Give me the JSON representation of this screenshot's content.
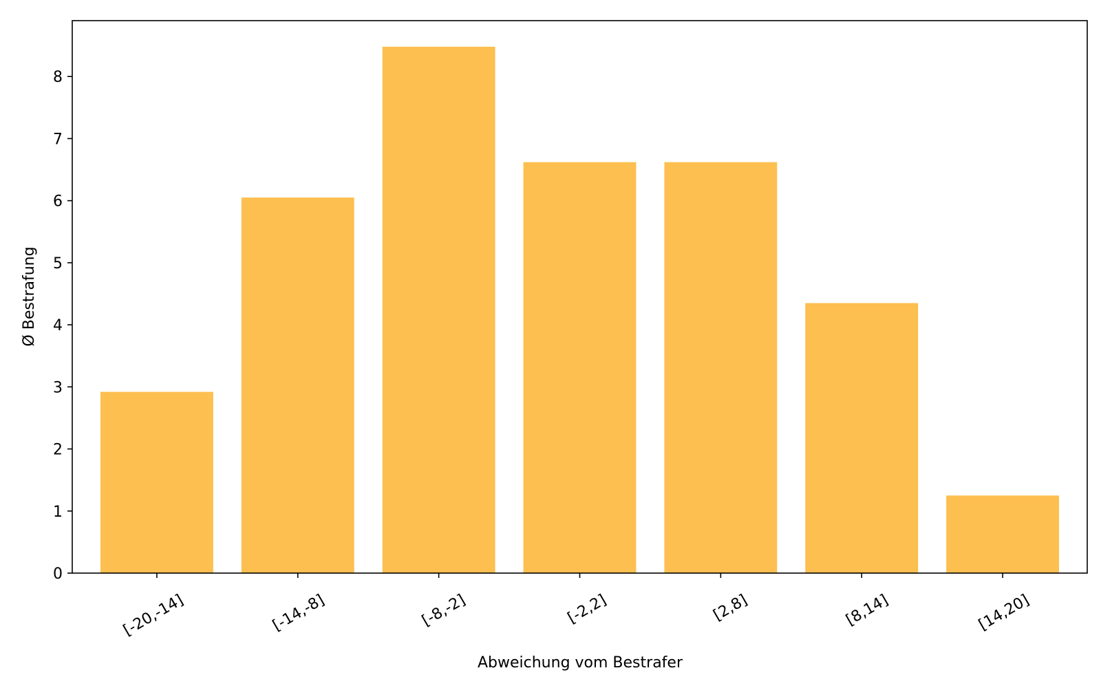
{
  "chart_data": {
    "type": "bar",
    "categories": [
      "[-20,-14]",
      "[-14,-8]",
      "[-8,-2]",
      "[-2,2]",
      "[2,8]",
      "[8,14]",
      "[14,20]"
    ],
    "values": [
      2.92,
      6.05,
      8.48,
      6.62,
      6.62,
      4.35,
      1.25
    ],
    "xlabel": "Abweichung vom Bestrafer",
    "ylabel": "Ø Bestrafung",
    "ylim": [
      0,
      8.9
    ],
    "yticks": [
      "0",
      "1",
      "2",
      "3",
      "4",
      "5",
      "6",
      "7",
      "8"
    ],
    "grid": false,
    "bar_color": "#FDBF50"
  }
}
